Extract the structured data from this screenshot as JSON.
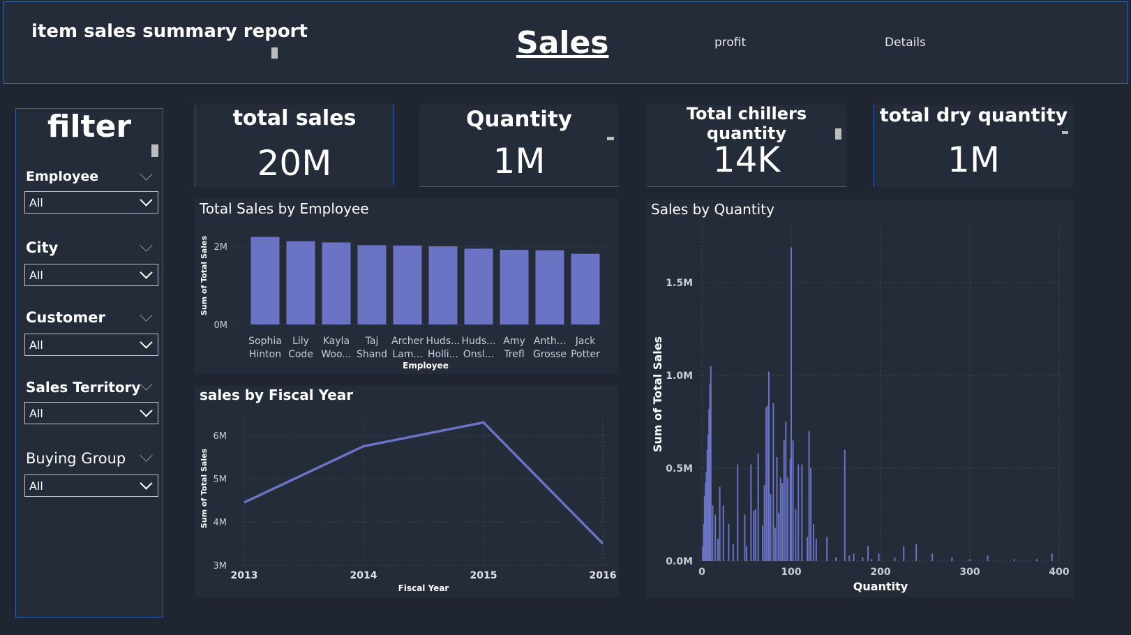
{
  "header": {
    "report_title": "item sales summary report",
    "nav_sales": "Sales",
    "nav_profit": "profit",
    "nav_details": "Details"
  },
  "sidebar": {
    "title": "filter",
    "slicers": [
      {
        "label": "Employee",
        "value": "All"
      },
      {
        "label": "City",
        "value": "All"
      },
      {
        "label": "Customer",
        "value": "All"
      },
      {
        "label": "Sales Territory",
        "value": "All"
      },
      {
        "label": "Buying Group",
        "value": "All"
      }
    ]
  },
  "cards": [
    {
      "title": "total sales",
      "value": "20M"
    },
    {
      "title": "Quantity",
      "value": "1M"
    },
    {
      "title": "Total chillers quantity",
      "value": "14K"
    },
    {
      "title": "total dry quantity",
      "value": "1M"
    }
  ],
  "colors": {
    "accent": "#6b73c4",
    "background": "#1f2632",
    "panel": "#252c39",
    "border": "#2f61a8"
  },
  "chart_data": [
    {
      "type": "bar",
      "title": "Total Sales by Employee",
      "xlabel": "Employee",
      "ylabel": "Sum of Total Sales",
      "categories": [
        [
          "Sophia",
          "Hinton"
        ],
        [
          "Lily",
          "Code"
        ],
        [
          "Kayla",
          "Woo..."
        ],
        [
          "Taj",
          "Shand"
        ],
        [
          "Archer",
          "Lam..."
        ],
        [
          "Huds...",
          "Holli..."
        ],
        [
          "Huds...",
          "Onsl..."
        ],
        [
          "Amy",
          "Trefl"
        ],
        [
          "Anth...",
          "Grosse"
        ],
        [
          "Jack",
          "Potter"
        ]
      ],
      "values": [
        2.24,
        2.13,
        2.1,
        2.03,
        2.02,
        2.0,
        1.94,
        1.91,
        1.9,
        1.81
      ],
      "unit": "M",
      "ylim": [
        0,
        2.5
      ],
      "yticks": [
        {
          "v": 0,
          "label": "0M"
        },
        {
          "v": 2,
          "label": "2M"
        }
      ]
    },
    {
      "type": "line",
      "title": "sales by Fiscal Year",
      "xlabel": "Fiscal Year",
      "ylabel": "Sum of Total Sales",
      "x": [
        "2013",
        "2014",
        "2015",
        "2016"
      ],
      "values": [
        4.45,
        5.75,
        6.3,
        3.5
      ],
      "unit": "M",
      "ylim": [
        3,
        6.4
      ],
      "yticks": [
        {
          "v": 3,
          "label": "3M"
        },
        {
          "v": 4,
          "label": "4M"
        },
        {
          "v": 5,
          "label": "5M"
        },
        {
          "v": 6,
          "label": "6M"
        }
      ]
    },
    {
      "type": "bar",
      "title": "Sales by Quantity",
      "xlabel": "Quantity",
      "ylabel": "Sum of Total Sales",
      "xlim": [
        0,
        400
      ],
      "ylim": [
        0,
        1.75
      ],
      "xticks": [
        {
          "v": 0,
          "label": "0"
        },
        {
          "v": 100,
          "label": "100"
        },
        {
          "v": 200,
          "label": "200"
        },
        {
          "v": 300,
          "label": "300"
        },
        {
          "v": 400,
          "label": "400"
        }
      ],
      "yticks": [
        {
          "v": 0,
          "label": "0.0M"
        },
        {
          "v": 0.5,
          "label": "0.5M"
        },
        {
          "v": 1.0,
          "label": "1.0M"
        },
        {
          "v": 1.5,
          "label": "1.5M"
        }
      ],
      "points": [
        [
          1,
          0.08
        ],
        [
          2,
          0.2
        ],
        [
          3,
          0.35
        ],
        [
          4,
          0.42
        ],
        [
          5,
          0.48
        ],
        [
          6,
          0.6
        ],
        [
          7,
          0.68
        ],
        [
          8,
          0.82
        ],
        [
          9,
          0.95
        ],
        [
          10,
          1.05
        ],
        [
          12,
          0.3
        ],
        [
          15,
          0.25
        ],
        [
          18,
          0.12
        ],
        [
          20,
          0.4
        ],
        [
          24,
          0.3
        ],
        [
          30,
          0.2
        ],
        [
          35,
          0.09
        ],
        [
          40,
          0.52
        ],
        [
          48,
          0.25
        ],
        [
          50,
          0.08
        ],
        [
          55,
          0.52
        ],
        [
          58,
          0.27
        ],
        [
          60,
          0.28
        ],
        [
          63,
          0.58
        ],
        [
          68,
          0.19
        ],
        [
          70,
          0.41
        ],
        [
          72,
          0.83
        ],
        [
          74,
          0.84
        ],
        [
          75,
          1.02
        ],
        [
          77,
          0.36
        ],
        [
          80,
          0.85
        ],
        [
          82,
          0.18
        ],
        [
          84,
          0.56
        ],
        [
          86,
          0.26
        ],
        [
          88,
          0.45
        ],
        [
          90,
          0.42
        ],
        [
          92,
          0.65
        ],
        [
          94,
          0.75
        ],
        [
          96,
          0.45
        ],
        [
          99,
          0.55
        ],
        [
          100,
          1.69
        ],
        [
          102,
          0.65
        ],
        [
          105,
          0.28
        ],
        [
          108,
          0.52
        ],
        [
          112,
          0.52
        ],
        [
          118,
          0.13
        ],
        [
          120,
          0.7
        ],
        [
          122,
          0.5
        ],
        [
          125,
          0.2
        ],
        [
          128,
          0.12
        ],
        [
          140,
          0.13
        ],
        [
          150,
          0.02
        ],
        [
          160,
          0.6
        ],
        [
          165,
          0.03
        ],
        [
          170,
          0.04
        ],
        [
          180,
          0.02
        ],
        [
          186,
          0.08
        ],
        [
          190,
          0.01
        ],
        [
          198,
          0.04
        ],
        [
          216,
          0.02
        ],
        [
          226,
          0.08
        ],
        [
          240,
          0.09
        ],
        [
          258,
          0.04
        ],
        [
          280,
          0.02
        ],
        [
          300,
          0.01
        ],
        [
          320,
          0.03
        ],
        [
          350,
          0.01
        ],
        [
          375,
          0.01
        ],
        [
          392,
          0.04
        ]
      ]
    }
  ]
}
